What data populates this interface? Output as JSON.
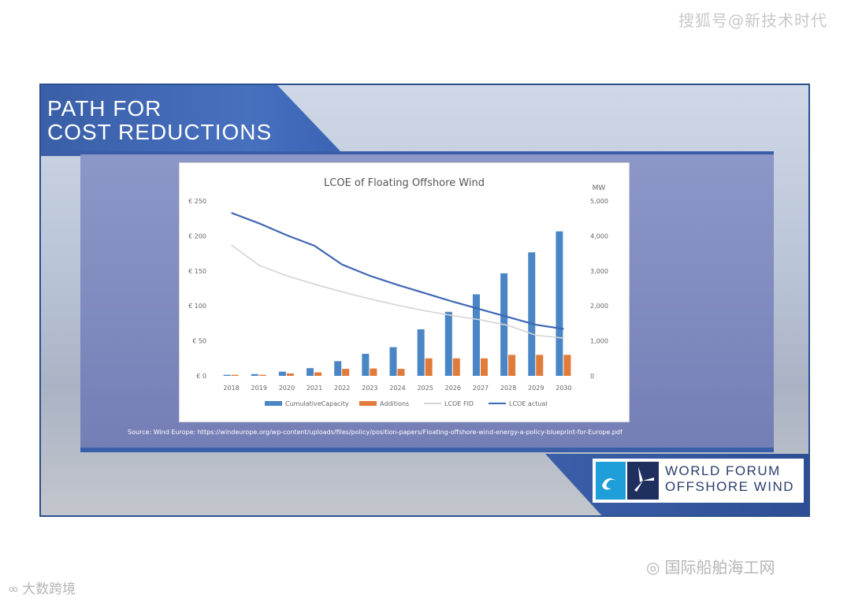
{
  "watermarks": {
    "top_right": "搜狐号@新技术时代",
    "bottom_right": "国际船舶海工网",
    "bottom_left": "大数跨境"
  },
  "slide": {
    "title_line1": "PATH FOR",
    "title_line2": "COST REDUCTIONS",
    "source": "Source: Wind Europe: https://windeurope.org/wp-content/uploads/files/policy/position-papers/Floating-offshore-wind-energy-a-policy-blueprint-for-Europe.pdf",
    "logo_line1": "WORLD FORUM",
    "logo_line2": "OFFSHORE WIND"
  },
  "colors": {
    "brand_blue": "#3a5fa8",
    "capacity": "#4a86c5",
    "additions": "#e07b39",
    "lcoe_fid": "#d4d4d4",
    "lcoe_actual": "#3f66b3"
  },
  "chart_data": {
    "type": "bar",
    "title": "LCOE of Floating Offshore Wind",
    "y2label": "MW",
    "categories": [
      "2018",
      "2019",
      "2020",
      "2021",
      "2022",
      "2023",
      "2024",
      "2025",
      "2026",
      "2027",
      "2028",
      "2029",
      "2030"
    ],
    "ylim": [
      0,
      250
    ],
    "y_ticks": [
      "€ 0",
      "€ 50",
      "€ 100",
      "€ 150",
      "€ 200",
      "€ 250"
    ],
    "y2lim": [
      0,
      5000
    ],
    "y2_ticks": [
      "0",
      "1,000",
      "2,000",
      "3,000",
      "4,000",
      "5,000"
    ],
    "series": [
      {
        "name": "CumulativeCapacity",
        "kind": "bar",
        "axis": "right",
        "values": [
          30,
          50,
          120,
          220,
          420,
          630,
          820,
          1330,
          1830,
          2330,
          2930,
          3530,
          4130
        ]
      },
      {
        "name": "Additions",
        "kind": "bar",
        "axis": "right",
        "values": [
          30,
          30,
          70,
          100,
          200,
          210,
          200,
          500,
          500,
          500,
          600,
          600,
          600
        ]
      },
      {
        "name": "LCOE FID",
        "kind": "line",
        "axis": "left",
        "values": [
          187,
          158,
          143,
          131,
          120,
          110,
          101,
          93,
          86,
          80,
          72,
          58,
          54
        ]
      },
      {
        "name": "LCOE actual",
        "kind": "line",
        "axis": "left",
        "values": [
          233,
          218,
          201,
          186,
          159,
          143,
          130,
          118,
          106,
          95,
          84,
          73,
          67
        ]
      }
    ],
    "legend_position": "bottom",
    "grid": false
  }
}
